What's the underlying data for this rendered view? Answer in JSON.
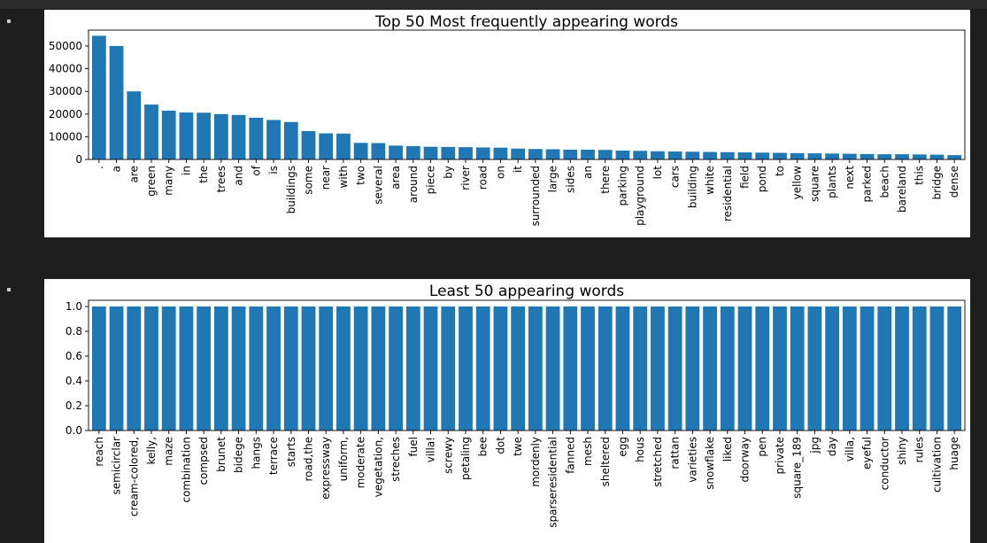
{
  "chart_data": [
    {
      "type": "bar",
      "title": "Top 50 Most frequently appearing words",
      "xlabel": "",
      "ylabel": "",
      "ylim": [
        0,
        57000
      ],
      "yticks": [
        0,
        10000,
        20000,
        30000,
        40000,
        50000
      ],
      "categories": [
        ".",
        "a",
        "are",
        "green",
        "many",
        "in",
        "the",
        "trees",
        "and",
        "of",
        "is",
        "buildings",
        "some",
        "near",
        "with",
        "two",
        "several",
        "area",
        "around",
        "piece",
        "by",
        "river",
        "road",
        "on",
        "it",
        "surrounded",
        "large",
        "sides",
        "an",
        "there",
        "parking",
        "playground",
        "lot",
        "cars",
        "building",
        "white",
        "residential",
        "field",
        "pond",
        "to",
        "yellow",
        "square",
        "plants",
        "next",
        "parked",
        "beach",
        "bareland",
        "this",
        "bridge",
        "dense"
      ],
      "values": [
        54500,
        50000,
        30000,
        24200,
        21500,
        20700,
        20600,
        20000,
        19600,
        18400,
        17400,
        16500,
        12500,
        11500,
        11400,
        7300,
        7200,
        6100,
        5900,
        5600,
        5500,
        5400,
        5300,
        5200,
        4800,
        4600,
        4500,
        4300,
        4300,
        4200,
        3900,
        3800,
        3600,
        3500,
        3400,
        3300,
        3200,
        3100,
        3000,
        2900,
        2800,
        2700,
        2600,
        2500,
        2400,
        2300,
        2300,
        2200,
        2100,
        1900
      ]
    },
    {
      "type": "bar",
      "title": "Least 50 appearing words",
      "xlabel": "",
      "ylabel": "",
      "ylim": [
        0,
        1.05
      ],
      "yticks": [
        0.0,
        0.2,
        0.4,
        0.6,
        0.8,
        1.0
      ],
      "categories": [
        "reach",
        "semicirclar",
        "cream-colored,",
        "kelly,",
        "maze",
        "combination",
        "compsed",
        "brunet",
        "bidege",
        "hangs",
        "terrace",
        "starts",
        "road,the",
        "expressway",
        "uniform,",
        "moderate",
        "vegetation,",
        "streches",
        "fuel",
        "villa!",
        "screwy",
        "petaling",
        "bee",
        "dot",
        "twe",
        "mordenly",
        "sparseresidential",
        "fanned",
        "mesh",
        "sheltered",
        "egg",
        "hous",
        "stretched",
        "rattan",
        "varieties",
        "snowflake",
        "liked",
        "doorway",
        "pen",
        "private",
        "square_189",
        "jpg",
        "day",
        "villa,",
        "eyeful",
        "conductor",
        "shiny",
        "rules",
        "cultivation",
        "huage"
      ],
      "values": [
        1,
        1,
        1,
        1,
        1,
        1,
        1,
        1,
        1,
        1,
        1,
        1,
        1,
        1,
        1,
        1,
        1,
        1,
        1,
        1,
        1,
        1,
        1,
        1,
        1,
        1,
        1,
        1,
        1,
        1,
        1,
        1,
        1,
        1,
        1,
        1,
        1,
        1,
        1,
        1,
        1,
        1,
        1,
        1,
        1,
        1,
        1,
        1,
        1,
        1
      ]
    }
  ],
  "colors": {
    "bar": "#1f77b4",
    "background": "#1e1e1e",
    "figure": "#ffffff"
  }
}
